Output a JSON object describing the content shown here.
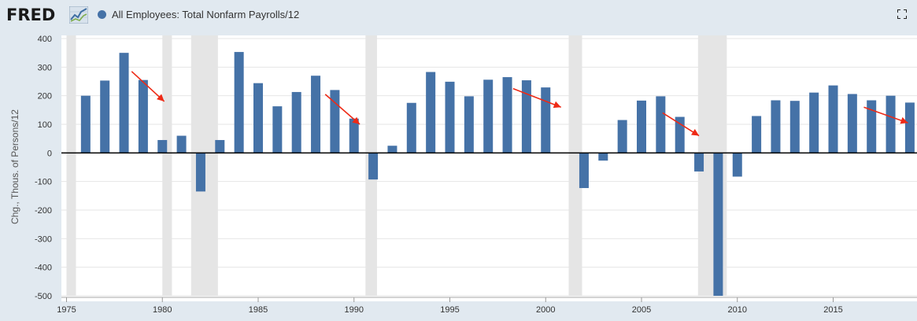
{
  "header": {
    "logo_text": "FRED",
    "series_label": "All Employees: Total Nonfarm Payrolls/12"
  },
  "icons": {
    "logo": "fred-graph-icon",
    "fullscreen": "fullscreen-icon"
  },
  "colors": {
    "bar": "#4572a7",
    "recession": "#e5e5e5",
    "annotation_arrow": "#ee2a16",
    "background": "#e1e9f0"
  },
  "chart_data": {
    "type": "bar",
    "title": "All Employees: Total Nonfarm Payrolls/12",
    "xlabel": "",
    "ylabel": "Chg., Thous. of Persons/12",
    "ylim": [
      -500,
      400
    ],
    "xlim": [
      1975,
      2019
    ],
    "yticks": [
      400,
      300,
      200,
      100,
      0,
      -100,
      -200,
      -300,
      -400,
      -500
    ],
    "xticks": [
      1975,
      1980,
      1985,
      1990,
      1995,
      2000,
      2005,
      2010,
      2015
    ],
    "grid": true,
    "legend": "top-left",
    "series": [
      {
        "name": "All Employees: Total Nonfarm Payrolls/12",
        "x": [
          1976,
          1977,
          1978,
          1979,
          1980,
          1981,
          1982,
          1983,
          1984,
          1985,
          1986,
          1987,
          1988,
          1989,
          1990,
          1991,
          1992,
          1993,
          1994,
          1995,
          1996,
          1997,
          1998,
          1999,
          2000,
          2001,
          2002,
          2003,
          2004,
          2005,
          2006,
          2007,
          2008,
          2009,
          2010,
          2011,
          2012,
          2013,
          2014,
          2015,
          2016,
          2017,
          2018,
          2019
        ],
        "values": [
          200,
          253,
          350,
          255,
          45,
          60,
          -135,
          45,
          353,
          244,
          163,
          213,
          270,
          220,
          120,
          -93,
          25,
          175,
          283,
          249,
          198,
          256,
          265,
          254,
          229,
          null,
          -123,
          -27,
          115,
          183,
          198,
          126,
          -65,
          -500,
          -83,
          129,
          184,
          182,
          211,
          236,
          206,
          184,
          200,
          176
        ]
      }
    ],
    "recessions": [
      [
        1980.0,
        1980.5
      ],
      [
        1981.5,
        1982.9
      ],
      [
        1990.6,
        1991.2
      ],
      [
        2001.2,
        2001.9
      ],
      [
        2007.95,
        2009.45
      ]
    ],
    "annotations": [
      {
        "type": "arrow",
        "from": [
          1978.4,
          285
        ],
        "to": [
          1980.1,
          180
        ]
      },
      {
        "type": "arrow",
        "from": [
          1988.5,
          205
        ],
        "to": [
          1990.3,
          100
        ]
      },
      {
        "type": "arrow",
        "from": [
          1998.3,
          225
        ],
        "to": [
          2000.8,
          160
        ]
      },
      {
        "type": "arrow",
        "from": [
          2006.1,
          140
        ],
        "to": [
          2008.0,
          60
        ]
      },
      {
        "type": "arrow",
        "from": [
          2016.6,
          160
        ],
        "to": [
          2018.9,
          105
        ]
      }
    ]
  }
}
